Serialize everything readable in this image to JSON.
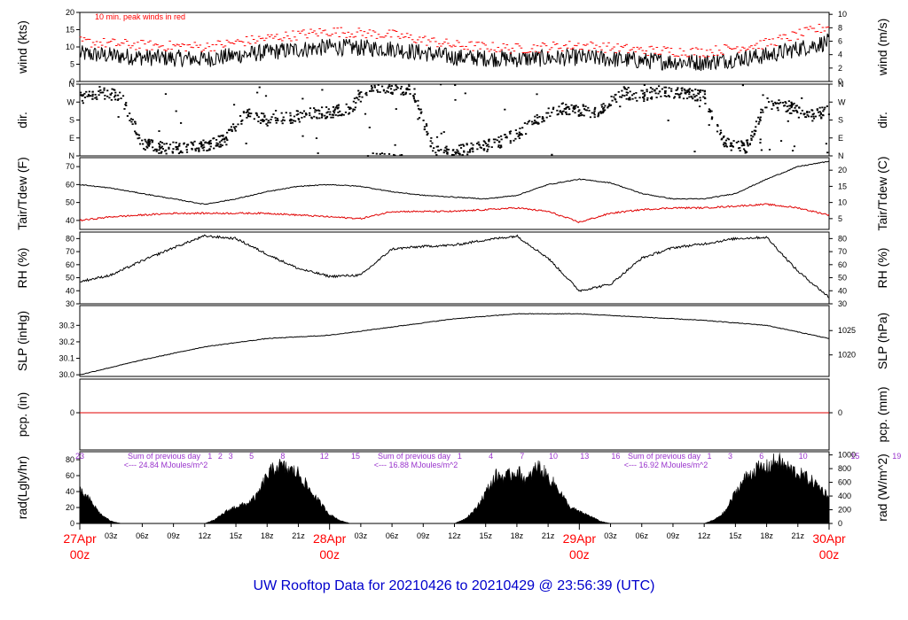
{
  "title": "UW Rooftop Data for 20210426  to  20210429 @ 23:56:39  (UTC)",
  "colors": {
    "axis": "#000000",
    "dew": "#e00000",
    "peak": "#ff0000",
    "rad_annot": "#9933cc",
    "day_label": "#ff0000",
    "title": "#0000cc"
  },
  "chart_data": [
    {
      "type": "line",
      "id": "wind",
      "ylabel": "wind (kts)",
      "ylabel_right": "wind (m/s)",
      "ylim": [
        0,
        20
      ],
      "yticks": [
        0,
        5,
        10,
        15,
        20
      ],
      "yticks_right": [
        0,
        2,
        4,
        6,
        8,
        10
      ],
      "annotation": "10 min. peak winds in red",
      "x_hours": [
        0,
        6,
        12,
        18,
        24,
        30,
        36,
        42,
        48,
        54,
        60,
        66,
        72
      ],
      "series": [
        {
          "name": "wind",
          "values": [
            8,
            7,
            6.5,
            8.5,
            10,
            9.5,
            7,
            6.5,
            7,
            6,
            5.5,
            7.5,
            11.5
          ]
        },
        {
          "name": "10 min. peak winds",
          "values": [
            11.5,
            10.5,
            10,
            12.5,
            14.5,
            13.5,
            10.5,
            9.5,
            10.5,
            9,
            8.5,
            11,
            16
          ]
        }
      ]
    },
    {
      "type": "scatter",
      "id": "dir",
      "ylabel": "dir.",
      "ylabel_right": "dir.",
      "yticks": [
        "N",
        "W",
        "S",
        "E",
        "N"
      ],
      "ylim": [
        0,
        360
      ],
      "x_hours": [
        0,
        2,
        4,
        6,
        8,
        10,
        12,
        14,
        16,
        18,
        20,
        22,
        24,
        26,
        28,
        30,
        32,
        34,
        36,
        38,
        40,
        42,
        44,
        46,
        48,
        50,
        52,
        54,
        56,
        58,
        60,
        62,
        64,
        66,
        68,
        70,
        72
      ],
      "values": [
        290,
        320,
        300,
        60,
        40,
        40,
        50,
        80,
        220,
        180,
        190,
        210,
        220,
        240,
        350,
        340,
        330,
        30,
        20,
        40,
        60,
        110,
        180,
        240,
        230,
        220,
        320,
        300,
        330,
        310,
        300,
        60,
        40,
        270,
        250,
        200,
        230
      ]
    },
    {
      "type": "line",
      "id": "temp",
      "ylabel": "Tair/Tdew (F)",
      "ylabel_right": "Tair/Tdew (C)",
      "ylim": [
        35,
        75
      ],
      "yticks": [
        40,
        50,
        60,
        70
      ],
      "yticks_right": [
        5,
        10,
        15,
        20
      ],
      "x_hours": [
        0,
        3,
        6,
        9,
        12,
        15,
        18,
        21,
        24,
        27,
        30,
        33,
        36,
        39,
        42,
        45,
        48,
        51,
        54,
        57,
        60,
        63,
        66,
        69,
        72
      ],
      "series": [
        {
          "name": "Tair",
          "values": [
            60,
            58,
            55,
            52,
            49,
            52,
            56,
            59,
            60,
            59,
            56,
            54,
            53,
            52,
            54,
            60,
            63,
            61,
            55,
            52,
            52,
            55,
            63,
            70,
            73
          ]
        },
        {
          "name": "Tdew",
          "values": [
            40,
            42,
            43,
            44,
            44,
            44,
            44,
            43,
            42,
            41,
            45,
            45,
            45,
            46,
            47,
            45,
            39,
            44,
            46,
            47,
            47,
            48,
            49,
            47,
            43
          ]
        }
      ]
    },
    {
      "type": "line",
      "id": "rh",
      "ylabel": "RH (%)",
      "ylabel_right": "RH (%)",
      "ylim": [
        30,
        85
      ],
      "yticks": [
        30,
        40,
        50,
        60,
        70,
        80
      ],
      "x_hours": [
        0,
        3,
        6,
        9,
        12,
        15,
        18,
        21,
        24,
        27,
        30,
        33,
        36,
        39,
        42,
        45,
        48,
        51,
        54,
        57,
        60,
        63,
        66,
        69,
        72
      ],
      "values": [
        47,
        52,
        63,
        73,
        82,
        80,
        68,
        57,
        51,
        52,
        72,
        74,
        75,
        79,
        82,
        65,
        40,
        45,
        65,
        73,
        76,
        80,
        81,
        55,
        35
      ]
    },
    {
      "type": "line",
      "id": "slp",
      "ylabel": "SLP (inHg)",
      "ylabel_right": "SLP (hPa)",
      "ylim": [
        29.99,
        30.42
      ],
      "yticks": [
        30.0,
        30.1,
        30.2,
        30.3
      ],
      "yticks_right": [
        1020,
        1025
      ],
      "x_hours": [
        0,
        6,
        12,
        18,
        24,
        30,
        36,
        42,
        48,
        54,
        60,
        66,
        72
      ],
      "values": [
        30.0,
        30.09,
        30.17,
        30.22,
        30.24,
        30.29,
        30.34,
        30.37,
        30.37,
        30.35,
        30.33,
        30.3,
        30.22
      ]
    },
    {
      "type": "line",
      "id": "pcp",
      "ylabel": "pcp. (in)",
      "ylabel_right": "pcp. (mm)",
      "yticks": [
        0
      ],
      "yticks_right": [
        0
      ],
      "values": [
        0,
        0
      ]
    },
    {
      "type": "area",
      "id": "rad",
      "ylabel": "rad(Lgly/hr)",
      "ylabel_right": "rad (W/m^2)",
      "ylim": [
        0,
        90
      ],
      "yticks": [
        0,
        20,
        40,
        60,
        80
      ],
      "yticks_right": [
        0,
        200,
        400,
        600,
        800,
        1000
      ],
      "x_hours": [
        0,
        1,
        2,
        3,
        4,
        12,
        13,
        14,
        15,
        16,
        17,
        18,
        19,
        20,
        21,
        22,
        23,
        24,
        25,
        26,
        27,
        36,
        37,
        38,
        39,
        40,
        41,
        42,
        43,
        44,
        45,
        46,
        47,
        48,
        49,
        50,
        51,
        52,
        60,
        61,
        62,
        63,
        64,
        65,
        66,
        67,
        68,
        69,
        70,
        71,
        72
      ],
      "values": [
        42,
        30,
        12,
        3,
        0,
        0,
        5,
        15,
        22,
        25,
        35,
        62,
        75,
        70,
        65,
        45,
        28,
        12,
        4,
        0,
        0,
        0,
        6,
        18,
        40,
        62,
        60,
        68,
        55,
        75,
        60,
        45,
        22,
        15,
        10,
        3,
        0,
        0,
        0,
        5,
        15,
        40,
        60,
        70,
        72,
        82,
        72,
        65,
        58,
        48,
        35
      ],
      "annotations": [
        {
          "text": "Sum of previous day",
          "text2": "<--- 24.84 MJoules/m^2"
        },
        {
          "text": "Sum of previous day",
          "text2": "<--- 16.88 MJoules/m^2"
        },
        {
          "text": "Sum of previous day",
          "text2": "<--- 16.92 MJoules/m^2"
        }
      ],
      "hour_markers": [
        [
          "23",
          "1",
          "2",
          "3",
          "5",
          "8",
          "12",
          "15"
        ],
        [
          "1",
          "4",
          "7",
          "10",
          "13",
          "16"
        ],
        [
          "1",
          "3",
          "6",
          "10",
          "15",
          "19"
        ]
      ]
    }
  ],
  "x_axis": {
    "hour_labels": [
      "03z",
      "06z",
      "09z",
      "12z",
      "15z",
      "18z",
      "21z",
      "03z",
      "06z",
      "09z",
      "12z",
      "15z",
      "18z",
      "21z",
      "03z",
      "06z",
      "09z",
      "12z",
      "15z",
      "18z",
      "21z"
    ],
    "day_labels": [
      {
        "date": "27Apr",
        "hour": "00z"
      },
      {
        "date": "28Apr",
        "hour": "00z"
      },
      {
        "date": "29Apr",
        "hour": "00z"
      },
      {
        "date": "30Apr",
        "hour": "00z"
      }
    ]
  }
}
